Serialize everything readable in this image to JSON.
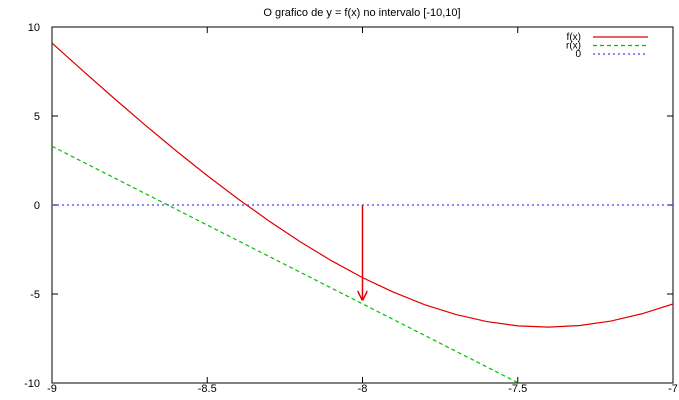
{
  "chart_data": {
    "type": "line",
    "title": "O grafico de y = f(x) no intervalo [-10,10]",
    "xlabel": "",
    "ylabel": "",
    "xlim": [
      -9,
      -7
    ],
    "ylim": [
      -10,
      10
    ],
    "x_ticks": [
      -9,
      -8.5,
      -8,
      -7.5,
      -7
    ],
    "x_tick_labels": [
      "-9",
      "-8.5",
      "-8",
      "-7.5",
      "-7"
    ],
    "y_ticks": [
      -10,
      -5,
      0,
      5,
      10
    ],
    "y_tick_labels": [
      "-10",
      "-5",
      "0",
      "5",
      "10"
    ],
    "grid": false,
    "legend_position": "top-right",
    "series": [
      {
        "name": "f(x)",
        "color": "#e00000",
        "dash": "solid",
        "x": [
          -9,
          -8.9,
          -8.8,
          -8.7,
          -8.6,
          -8.5,
          -8.4,
          -8.3,
          -8.2,
          -8.1,
          -8.0,
          -7.9,
          -7.8,
          -7.7,
          -7.6,
          -7.5,
          -7.4,
          -7.3,
          -7.2,
          -7.1,
          -7.0
        ],
        "values": [
          9.1,
          7.53,
          5.99,
          4.49,
          3.04,
          1.65,
          0.33,
          -0.91,
          -2.07,
          -3.13,
          -4.08,
          -4.9,
          -5.6,
          -6.15,
          -6.55,
          -6.79,
          -6.86,
          -6.77,
          -6.52,
          -6.11,
          -5.56
        ]
      },
      {
        "name": "r(x)",
        "color": "#00c000",
        "dash": "dashed",
        "x": [
          -9,
          -7.5
        ],
        "values": [
          3.3,
          -9.98
        ]
      },
      {
        "name": "0",
        "color": "#4040ff",
        "dash": "dotted",
        "x": [
          -9,
          -7
        ],
        "values": [
          0,
          0
        ]
      }
    ],
    "annotations": [
      {
        "type": "arrow",
        "color": "#e00000",
        "from": [
          -8,
          0
        ],
        "to": [
          -8,
          -5.32
        ]
      }
    ]
  }
}
